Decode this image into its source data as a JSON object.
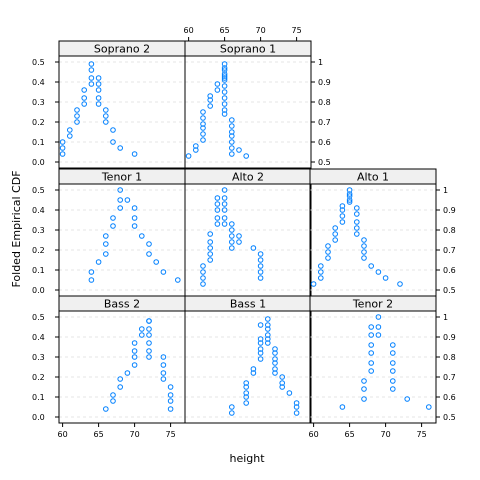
{
  "chart_data": {
    "type": "scatter",
    "xlabel": "height",
    "ylabel": "Folded Empirical CDF",
    "x_ticks": [
      60,
      65,
      70,
      75
    ],
    "y_ticks_left": [
      "0.0",
      "0.1",
      "0.2",
      "0.3",
      "0.4",
      "0.5"
    ],
    "y_ticks_right": [
      "0.5",
      "0.6",
      "0.7",
      "0.8",
      "0.9",
      "1"
    ],
    "xlim": [
      59.5,
      77
    ],
    "ylim": [
      -0.03,
      0.53
    ],
    "layout": {
      "columns": 3,
      "rows": 3
    },
    "point_color": "#0080ff",
    "panels": [
      {
        "name": "Bass 2",
        "label": "Bass 2",
        "row": 1,
        "col": 1,
        "x": [
          66,
          67,
          67,
          68,
          68,
          69,
          70,
          70,
          70,
          70,
          71,
          71,
          72,
          72,
          72,
          72,
          72,
          72,
          72,
          74,
          74,
          74,
          74,
          75,
          75,
          75,
          75
        ],
        "y": [
          0.04,
          0.08,
          0.11,
          0.15,
          0.19,
          0.22,
          0.26,
          0.3,
          0.33,
          0.37,
          0.41,
          0.44,
          0.48,
          0.48,
          0.44,
          0.41,
          0.37,
          0.33,
          0.3,
          0.3,
          0.26,
          0.22,
          0.19,
          0.15,
          0.11,
          0.08,
          0.04
        ]
      },
      {
        "name": "Bass 1",
        "label": "Bass 1",
        "row": 1,
        "col": 2,
        "x": [
          66,
          66,
          68,
          68,
          68,
          68,
          68,
          69,
          69,
          70,
          70,
          70,
          70,
          70,
          70,
          71,
          71,
          71,
          71,
          71,
          71,
          72,
          72,
          72,
          72,
          72,
          72,
          73,
          73,
          73,
          74,
          75,
          75,
          75
        ],
        "y": [
          0.02,
          0.05,
          0.07,
          0.1,
          0.12,
          0.15,
          0.17,
          0.22,
          0.24,
          0.29,
          0.32,
          0.34,
          0.37,
          0.39,
          0.46,
          0.37,
          0.39,
          0.41,
          0.44,
          0.46,
          0.49,
          0.34,
          0.32,
          0.29,
          0.27,
          0.24,
          0.22,
          0.17,
          0.15,
          0.2,
          0.12,
          0.07,
          0.05,
          0.02
        ]
      },
      {
        "name": "Tenor 2",
        "label": "Tenor 2",
        "row": 1,
        "col": 3,
        "x": [
          64,
          67,
          67,
          67,
          68,
          68,
          68,
          68,
          68,
          68,
          69,
          69,
          69,
          71,
          71,
          71,
          71,
          71,
          71,
          73,
          76
        ],
        "y": [
          0.05,
          0.09,
          0.14,
          0.18,
          0.23,
          0.27,
          0.32,
          0.36,
          0.41,
          0.45,
          0.5,
          0.45,
          0.41,
          0.36,
          0.32,
          0.27,
          0.23,
          0.18,
          0.14,
          0.09,
          0.05
        ]
      },
      {
        "name": "Tenor 1",
        "label": "Tenor 1",
        "row": 2,
        "col": 1,
        "x": [
          64,
          64,
          65,
          66,
          66,
          66,
          67,
          67,
          68,
          68,
          68,
          69,
          70,
          70,
          70,
          71,
          72,
          72,
          73,
          74,
          76
        ],
        "y": [
          0.05,
          0.09,
          0.14,
          0.18,
          0.23,
          0.27,
          0.32,
          0.36,
          0.41,
          0.45,
          0.5,
          0.45,
          0.41,
          0.36,
          0.32,
          0.27,
          0.23,
          0.18,
          0.14,
          0.09,
          0.05
        ]
      },
      {
        "name": "Alto 2",
        "label": "Alto 2",
        "row": 2,
        "col": 2,
        "x": [
          62,
          62,
          62,
          62,
          63,
          63,
          63,
          63,
          63,
          64,
          64,
          64,
          64,
          64,
          65,
          65,
          65,
          65,
          65,
          65,
          66,
          66,
          66,
          66,
          66,
          67,
          67,
          69,
          70,
          70,
          70,
          70,
          70
        ],
        "y": [
          0.03,
          0.06,
          0.09,
          0.12,
          0.15,
          0.18,
          0.21,
          0.24,
          0.28,
          0.33,
          0.36,
          0.4,
          0.43,
          0.46,
          0.5,
          0.46,
          0.43,
          0.4,
          0.36,
          0.33,
          0.33,
          0.3,
          0.27,
          0.24,
          0.21,
          0.27,
          0.24,
          0.21,
          0.18,
          0.15,
          0.12,
          0.09,
          0.06
        ]
      },
      {
        "name": "Alto 1",
        "label": "Alto 1",
        "row": 2,
        "col": 3,
        "x": [
          60,
          61,
          61,
          61,
          62,
          62,
          62,
          63,
          63,
          63,
          64,
          64,
          64,
          64,
          65,
          65,
          65,
          65,
          65,
          66,
          66,
          66,
          66,
          66,
          67,
          67,
          67,
          67,
          68,
          69,
          70,
          72
        ],
        "y": [
          0.03,
          0.06,
          0.09,
          0.12,
          0.16,
          0.19,
          0.22,
          0.25,
          0.28,
          0.31,
          0.34,
          0.37,
          0.4,
          0.42,
          0.45,
          0.48,
          0.5,
          0.47,
          0.44,
          0.41,
          0.38,
          0.34,
          0.31,
          0.28,
          0.25,
          0.22,
          0.19,
          0.16,
          0.12,
          0.09,
          0.06,
          0.03
        ]
      },
      {
        "name": "Soprano 2",
        "label": "Soprano 2",
        "row": 3,
        "col": 1,
        "x": [
          60,
          60,
          60,
          61,
          61,
          62,
          62,
          62,
          63,
          63,
          63,
          64,
          64,
          64,
          64,
          65,
          65,
          65,
          65,
          65,
          66,
          66,
          66,
          67,
          67,
          68,
          70
        ],
        "y": [
          0.04,
          0.07,
          0.1,
          0.13,
          0.16,
          0.2,
          0.23,
          0.26,
          0.29,
          0.32,
          0.36,
          0.39,
          0.42,
          0.46,
          0.49,
          0.42,
          0.39,
          0.36,
          0.32,
          0.29,
          0.26,
          0.23,
          0.2,
          0.16,
          0.1,
          0.07,
          0.04
        ]
      },
      {
        "name": "Soprano 1",
        "label": "Soprano 1",
        "row": 3,
        "col": 2,
        "x": [
          60,
          61,
          61,
          62,
          62,
          62,
          62,
          62,
          62,
          63,
          63,
          63,
          64,
          64,
          65,
          65,
          65,
          65,
          65,
          65,
          65,
          65,
          65,
          65,
          65,
          65,
          65,
          66,
          66,
          66,
          66,
          66,
          66,
          66,
          67,
          68
        ],
        "y": [
          0.03,
          0.06,
          0.08,
          0.11,
          0.14,
          0.17,
          0.19,
          0.22,
          0.25,
          0.28,
          0.31,
          0.33,
          0.36,
          0.39,
          0.42,
          0.44,
          0.47,
          0.49,
          0.46,
          0.43,
          0.41,
          0.38,
          0.35,
          0.32,
          0.29,
          0.26,
          0.24,
          0.21,
          0.18,
          0.15,
          0.13,
          0.1,
          0.07,
          0.04,
          0.06,
          0.03
        ]
      }
    ]
  }
}
